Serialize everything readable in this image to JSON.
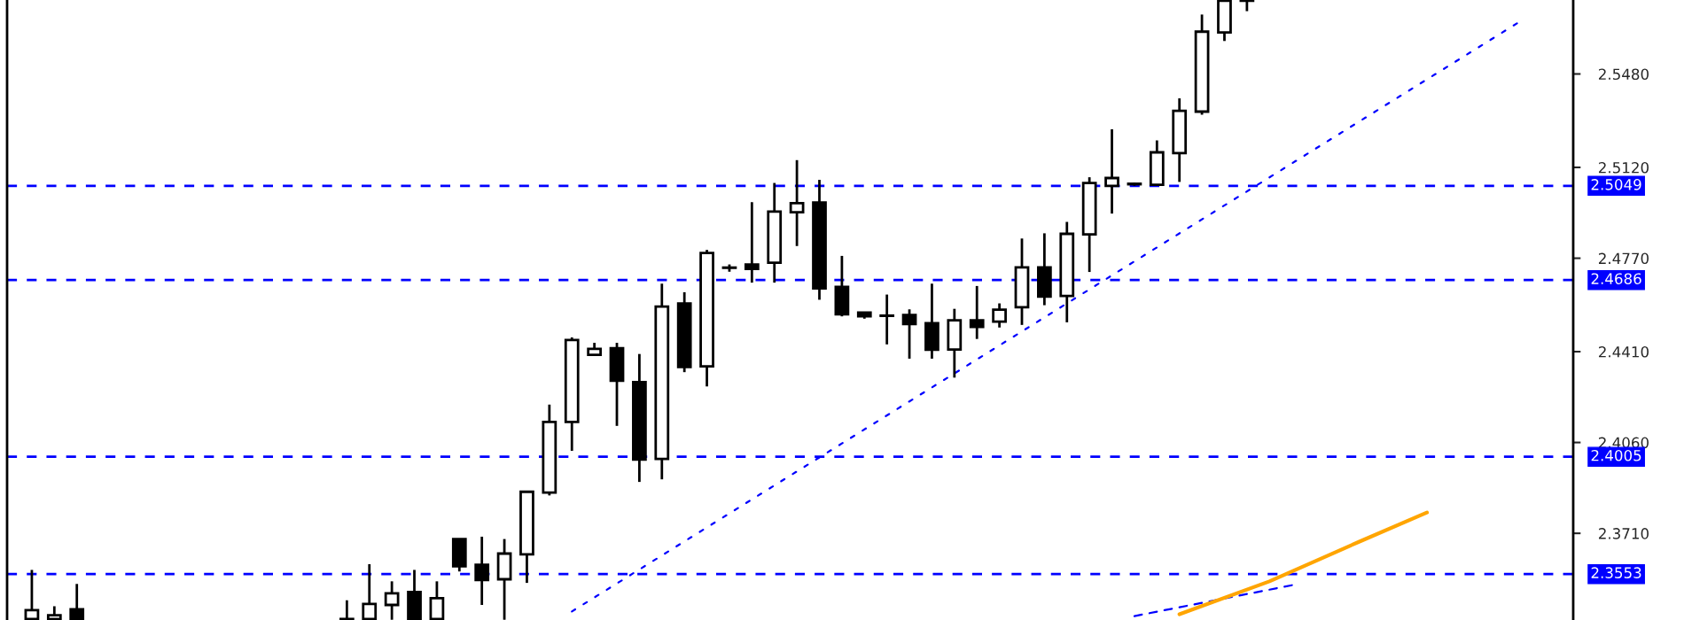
{
  "chart_data": {
    "type": "candlestick",
    "categories": [
      null,
      null,
      null,
      null,
      null,
      null,
      null,
      null,
      null,
      null,
      null,
      null,
      null,
      null,
      null,
      null,
      null,
      null,
      null,
      null,
      null,
      null,
      null,
      null,
      null,
      null,
      null,
      null,
      null,
      null,
      null,
      null,
      null,
      null,
      null,
      null,
      null,
      null,
      null,
      null,
      null,
      null,
      null,
      null,
      null,
      null,
      null,
      null,
      null,
      null,
      null,
      null,
      null,
      null,
      null,
      null,
      null,
      null,
      null,
      null,
      null,
      null,
      null,
      null,
      null,
      null,
      null,
      null,
      null
    ],
    "ohlc": [
      [
        2.338,
        2.3569,
        2.3377,
        2.3414
      ],
      [
        2.338,
        2.3429,
        2.3377,
        2.3394
      ],
      [
        2.3417,
        2.3515,
        2.3377,
        2.338
      ],
      null,
      null,
      null,
      null,
      null,
      null,
      null,
      null,
      null,
      null,
      null,
      [
        2.338,
        2.3452,
        2.3377,
        2.3378
      ],
      [
        2.338,
        2.3591,
        2.3377,
        2.3438
      ],
      [
        2.3434,
        2.3525,
        2.3377,
        2.3479
      ],
      [
        2.3484,
        2.3569,
        2.3377,
        2.338
      ],
      [
        2.338,
        2.3525,
        2.3377,
        2.346
      ],
      [
        2.3688,
        2.3688,
        2.3563,
        2.3583
      ],
      [
        2.3589,
        2.3697,
        2.3434,
        2.353
      ],
      [
        2.3533,
        2.3688,
        2.3377,
        2.3632
      ],
      [
        2.3629,
        2.387,
        2.3519,
        2.387
      ],
      [
        2.3867,
        2.4206,
        2.3856,
        2.4139
      ],
      [
        2.4139,
        2.4465,
        2.4028,
        2.4455
      ],
      [
        2.4398,
        2.4444,
        2.4398,
        2.4421
      ],
      [
        2.4423,
        2.4444,
        2.4124,
        2.4298
      ],
      [
        2.4293,
        2.4401,
        2.3908,
        2.3994
      ],
      [
        2.3997,
        2.4672,
        2.3918,
        2.4584
      ],
      [
        2.4596,
        2.4639,
        2.4331,
        2.4351
      ],
      [
        2.4353,
        2.4802,
        2.4276,
        2.479
      ],
      [
        2.4733,
        2.4746,
        2.4718,
        2.4734
      ],
      [
        2.4746,
        2.4986,
        2.4676,
        2.4729
      ],
      [
        2.4753,
        2.506,
        2.4676,
        2.495
      ],
      [
        2.4947,
        2.5148,
        2.4817,
        2.4982
      ],
      [
        2.4985,
        2.5072,
        2.461,
        2.4654
      ],
      [
        2.466,
        2.4779,
        2.4546,
        2.4554
      ],
      [
        2.4561,
        2.4561,
        2.4537,
        2.4546
      ],
      [
        2.4549,
        2.463,
        2.4438,
        2.4548
      ],
      [
        2.4551,
        2.4573,
        2.4383,
        2.4516
      ],
      [
        2.452,
        2.4672,
        2.4383,
        2.4417
      ],
      [
        2.4418,
        2.4575,
        2.431,
        2.4531
      ],
      [
        2.4531,
        2.4663,
        2.4459,
        2.4505
      ],
      [
        2.4526,
        2.4596,
        2.4503,
        2.4572
      ],
      [
        2.4581,
        2.4846,
        2.4513,
        2.4735
      ],
      [
        2.4735,
        2.4866,
        2.4589,
        2.4622
      ],
      [
        2.4625,
        2.491,
        2.4523,
        2.4864
      ],
      [
        2.4862,
        2.5082,
        2.4717,
        2.506
      ],
      [
        2.5049,
        2.5267,
        2.4942,
        2.5079
      ],
      [
        2.5055,
        2.5061,
        2.5049,
        2.5057
      ],
      [
        2.5053,
        2.5224,
        2.5049,
        2.5178
      ],
      [
        2.5175,
        2.5386,
        2.5064,
        2.5338
      ],
      [
        2.5335,
        2.5709,
        2.5323,
        2.5643
      ],
      [
        2.564,
        2.5764,
        2.5607,
        2.5762
      ],
      [
        2.5762,
        2.5764,
        2.5722,
        2.5763
      ],
      null,
      null,
      null,
      null,
      null,
      null,
      null,
      null,
      null,
      null,
      null,
      null,
      null,
      null
    ],
    "series": [
      {
        "type": "line",
        "color": "#0000ff",
        "line_style": "dotted",
        "values": [
          null,
          null,
          null,
          null,
          null,
          null,
          null,
          null,
          null,
          null,
          null,
          null,
          null,
          null,
          null,
          null,
          null,
          null,
          null,
          null,
          null,
          null,
          null,
          null,
          2.3409,
          null,
          null,
          null,
          null,
          null,
          null,
          null,
          null,
          null,
          null,
          null,
          null,
          null,
          null,
          null,
          null,
          null,
          null,
          null,
          null,
          null,
          null,
          null,
          null,
          null,
          null,
          null,
          null,
          null,
          null,
          null,
          null,
          null,
          null,
          null,
          null,
          null,
          null,
          null,
          null,
          null,
          2.5675,
          null,
          null
        ]
      },
      {
        "type": "line",
        "color": "#0000ff",
        "line_style": "dashed",
        "values": [
          null,
          null,
          null,
          null,
          null,
          null,
          null,
          null,
          null,
          null,
          null,
          null,
          null,
          null,
          null,
          null,
          null,
          null,
          null,
          null,
          null,
          null,
          null,
          null,
          null,
          null,
          null,
          null,
          null,
          null,
          null,
          null,
          null,
          null,
          null,
          null,
          null,
          null,
          null,
          null,
          null,
          null,
          null,
          null,
          null,
          null,
          null,
          null,
          null,
          2.3391,
          null,
          null,
          null,
          null,
          null,
          null,
          2.351,
          null,
          null,
          null,
          null,
          null,
          null,
          null,
          null,
          null,
          null,
          null,
          null
        ]
      },
      {
        "type": "line",
        "color": "#ffa500",
        "line_style": "solid",
        "values": [
          null,
          null,
          null,
          null,
          null,
          null,
          null,
          null,
          null,
          null,
          null,
          null,
          null,
          null,
          null,
          null,
          null,
          null,
          null,
          null,
          null,
          null,
          null,
          null,
          null,
          null,
          null,
          null,
          null,
          null,
          null,
          null,
          null,
          null,
          null,
          null,
          null,
          null,
          null,
          null,
          null,
          null,
          null,
          null,
          null,
          null,
          null,
          null,
          null,
          null,
          null,
          2.3398,
          null,
          null,
          null,
          2.3525,
          null,
          null,
          null,
          2.3678,
          null,
          null,
          2.379,
          null,
          null,
          null,
          null,
          null,
          null
        ]
      }
    ],
    "ylim": [
      2.3376,
      2.5765
    ],
    "yticks": [
      {
        "value": 2.548,
        "label": "2.5480"
      },
      {
        "value": 2.512,
        "label": "2.5120"
      },
      {
        "value": 2.477,
        "label": "2.4770"
      },
      {
        "value": 2.441,
        "label": "2.4410"
      },
      {
        "value": 2.406,
        "label": "2.4060"
      },
      {
        "value": 2.371,
        "label": "2.3710"
      }
    ],
    "ref_lines": [
      {
        "axis": "y",
        "value": 2.5049,
        "label": "2.5049",
        "color": "#0000ff",
        "line_style": "dashed"
      },
      {
        "axis": "y",
        "value": 2.4686,
        "label": "2.4686",
        "color": "#0000ff",
        "line_style": "dashed"
      },
      {
        "axis": "y",
        "value": 2.4005,
        "label": "2.4005",
        "color": "#0000ff",
        "line_style": "dashed"
      },
      {
        "axis": "y",
        "value": 2.3553,
        "label": "2.3553",
        "color": "#0000ff",
        "line_style": "dashed"
      }
    ],
    "grid": false
  }
}
